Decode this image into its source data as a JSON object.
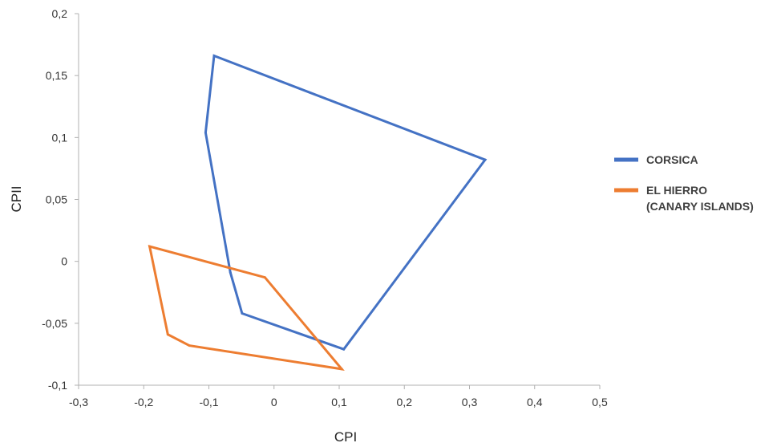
{
  "chart_data": {
    "type": "scatter",
    "xlabel": "CPI",
    "ylabel": "CPII",
    "xlim": [
      -0.3,
      0.5
    ],
    "ylim": [
      -0.1,
      0.2
    ],
    "x_ticks": [
      "-0,3",
      "-0,2",
      "-0,1",
      "0",
      "0,1",
      "0,2",
      "0,3",
      "0,4",
      "0,5"
    ],
    "y_ticks": [
      "-0,1",
      "-0,05",
      "0",
      "0,05",
      "0,1",
      "0,15",
      "0,2"
    ],
    "grid": false,
    "legend_position": "right",
    "series": [
      {
        "name": "CORSICA",
        "legend_lines": [
          "CORSICA"
        ],
        "color": "#4472C4",
        "closed": true,
        "points": [
          [
            -0.092,
            0.166
          ],
          [
            0.324,
            0.082
          ],
          [
            0.107,
            -0.071
          ],
          [
            -0.049,
            -0.042
          ],
          [
            -0.067,
            -0.009
          ],
          [
            -0.105,
            0.104
          ]
        ]
      },
      {
        "name": "EL HIERRO (CANARY ISLANDS)",
        "legend_lines": [
          "EL HIERRO",
          "(CANARY ISLANDS)"
        ],
        "color": "#ED7D31",
        "closed": true,
        "points": [
          [
            -0.191,
            0.012
          ],
          [
            -0.014,
            -0.013
          ],
          [
            0.104,
            -0.087
          ],
          [
            -0.13,
            -0.068
          ],
          [
            -0.163,
            -0.059
          ]
        ]
      }
    ]
  }
}
